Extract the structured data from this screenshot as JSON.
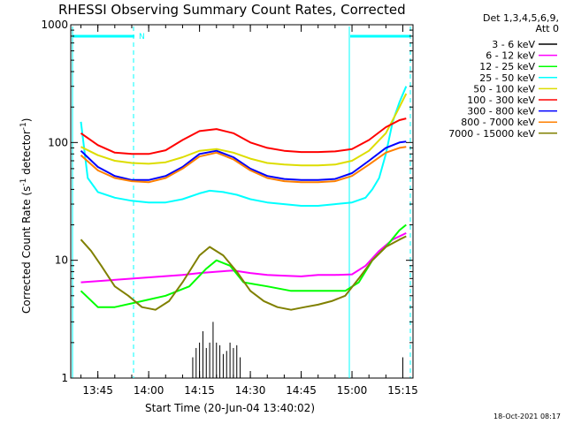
{
  "chart_data": {
    "type": "line",
    "title": "RHESSI Observing Summary Count Rates, Corrected",
    "xlabel": "Start Time (20-Jun-04 13:40:02)",
    "ylabel_main": "Corrected Count Rate (s",
    "ylabel_sup1": "-1",
    "ylabel_mid": " detector",
    "ylabel_sup2": "-1",
    "ylabel_end": ")",
    "yscale": "log",
    "ylim": [
      1,
      1000
    ],
    "x_minutes_range": [
      0,
      37.5
    ],
    "x_ticks": [
      {
        "label": "13:45",
        "minutes": 5
      },
      {
        "label": "14:00",
        "minutes": 20
      },
      {
        "label": "14:15",
        "minutes": 35
      },
      {
        "label": "14:30",
        "minutes": 50
      },
      {
        "label": "14:45",
        "minutes": 65
      },
      {
        "label": "15:00",
        "minutes": 80
      },
      {
        "label": "15:15",
        "minutes": 95
      }
    ],
    "y_ticks": [
      {
        "label": "1",
        "value": 1
      },
      {
        "label": "10",
        "value": 10
      },
      {
        "label": "100",
        "value": 100
      },
      {
        "label": "1000",
        "value": 1000
      }
    ],
    "legend_header": [
      "Det 1,3,4,5,6,9,",
      "Att 0"
    ],
    "series": [
      {
        "name": "3 - 6 keV",
        "color": "#000000",
        "x": [
          33,
          34,
          35,
          36,
          37,
          38,
          39,
          40,
          41,
          42,
          43,
          44,
          45,
          46,
          47,
          95
        ],
        "y": [
          1.5,
          1.8,
          2.0,
          2.5,
          1.8,
          2.0,
          3.0,
          2.0,
          1.9,
          1.6,
          1.7,
          2.0,
          1.8,
          1.9,
          1.5,
          1.5
        ]
      },
      {
        "name": "6 - 12 keV",
        "color": "#ff00ff",
        "x": [
          0,
          30,
          35,
          40,
          45,
          50,
          55,
          60,
          65,
          70,
          75,
          80,
          84,
          88,
          92,
          96
        ],
        "y": [
          6.5,
          7.5,
          7.8,
          8.0,
          8.2,
          7.8,
          7.5,
          7.4,
          7.3,
          7.5,
          7.5,
          7.6,
          9.0,
          12,
          15,
          17
        ]
      },
      {
        "name": "12 - 25 keV",
        "color": "#00ff00",
        "x": [
          0,
          5,
          10,
          18,
          25,
          32,
          37,
          40,
          44,
          48,
          55,
          62,
          70,
          78,
          82,
          86,
          90,
          94,
          96
        ],
        "y": [
          5.5,
          4.0,
          4.0,
          4.5,
          5.0,
          6.0,
          8.5,
          10,
          9.0,
          6.5,
          6.0,
          5.5,
          5.5,
          5.5,
          6.5,
          10,
          13,
          18,
          20
        ]
      },
      {
        "name": "25 - 50 keV",
        "color": "#00ffff",
        "x": [
          0,
          2,
          5,
          10,
          15,
          20,
          25,
          30,
          35,
          38,
          42,
          46,
          50,
          55,
          60,
          65,
          70,
          75,
          80,
          84,
          86,
          88,
          90,
          92,
          94,
          96
        ],
        "y": [
          150,
          50,
          38,
          34,
          32,
          31,
          31,
          33,
          37,
          39,
          38,
          36,
          33,
          31,
          30,
          29,
          29,
          30,
          31,
          34,
          40,
          50,
          80,
          150,
          220,
          300
        ]
      },
      {
        "name": "50 - 100 keV",
        "color": "#dddd00",
        "x": [
          0,
          5,
          10,
          15,
          20,
          25,
          30,
          35,
          40,
          45,
          50,
          55,
          60,
          65,
          70,
          75,
          80,
          85,
          90,
          94,
          96
        ],
        "y": [
          92,
          78,
          70,
          67,
          66,
          68,
          75,
          85,
          88,
          82,
          73,
          67,
          65,
          64,
          64,
          65,
          70,
          85,
          120,
          200,
          260
        ]
      },
      {
        "name": "100 - 300 keV",
        "color": "#ff0000",
        "x": [
          0,
          5,
          10,
          15,
          20,
          25,
          30,
          35,
          40,
          45,
          50,
          55,
          60,
          65,
          70,
          75,
          80,
          85,
          90,
          94,
          96
        ],
        "y": [
          120,
          95,
          82,
          80,
          80,
          86,
          105,
          125,
          130,
          120,
          100,
          90,
          85,
          83,
          83,
          84,
          88,
          105,
          135,
          155,
          160
        ]
      },
      {
        "name": "300 - 800 keV",
        "color": "#0000ff",
        "x": [
          0,
          5,
          10,
          15,
          20,
          25,
          30,
          35,
          40,
          45,
          50,
          55,
          60,
          65,
          70,
          75,
          80,
          85,
          90,
          94,
          96
        ],
        "y": [
          85,
          62,
          52,
          48,
          48,
          52,
          62,
          80,
          85,
          75,
          60,
          52,
          49,
          48,
          48,
          49,
          55,
          70,
          90,
          100,
          102
        ]
      },
      {
        "name": "800 - 7000 keV",
        "color": "#ff8000",
        "x": [
          0,
          5,
          10,
          15,
          20,
          25,
          30,
          35,
          40,
          45,
          50,
          55,
          60,
          65,
          70,
          75,
          80,
          85,
          90,
          94,
          96
        ],
        "y": [
          78,
          58,
          50,
          47,
          46,
          50,
          60,
          76,
          82,
          72,
          58,
          50,
          47,
          46,
          46,
          47,
          52,
          65,
          82,
          90,
          92
        ]
      },
      {
        "name": "7000 - 15000 keV",
        "color": "#808000",
        "x": [
          0,
          3,
          6,
          10,
          14,
          18,
          22,
          26,
          30,
          35,
          38,
          42,
          46,
          50,
          54,
          58,
          62,
          66,
          70,
          74,
          78,
          82,
          86,
          90,
          94,
          96
        ],
        "y": [
          15,
          12,
          9.0,
          6.0,
          5.0,
          4.0,
          3.8,
          4.5,
          6.5,
          11,
          13,
          11,
          8.0,
          5.5,
          4.5,
          4.0,
          3.8,
          4.0,
          4.2,
          4.5,
          5.0,
          7.0,
          10,
          13,
          15,
          16
        ]
      }
    ],
    "legend_placement": "right",
    "grid": false
  },
  "timestamp": "18-Oct-2021 08:17"
}
